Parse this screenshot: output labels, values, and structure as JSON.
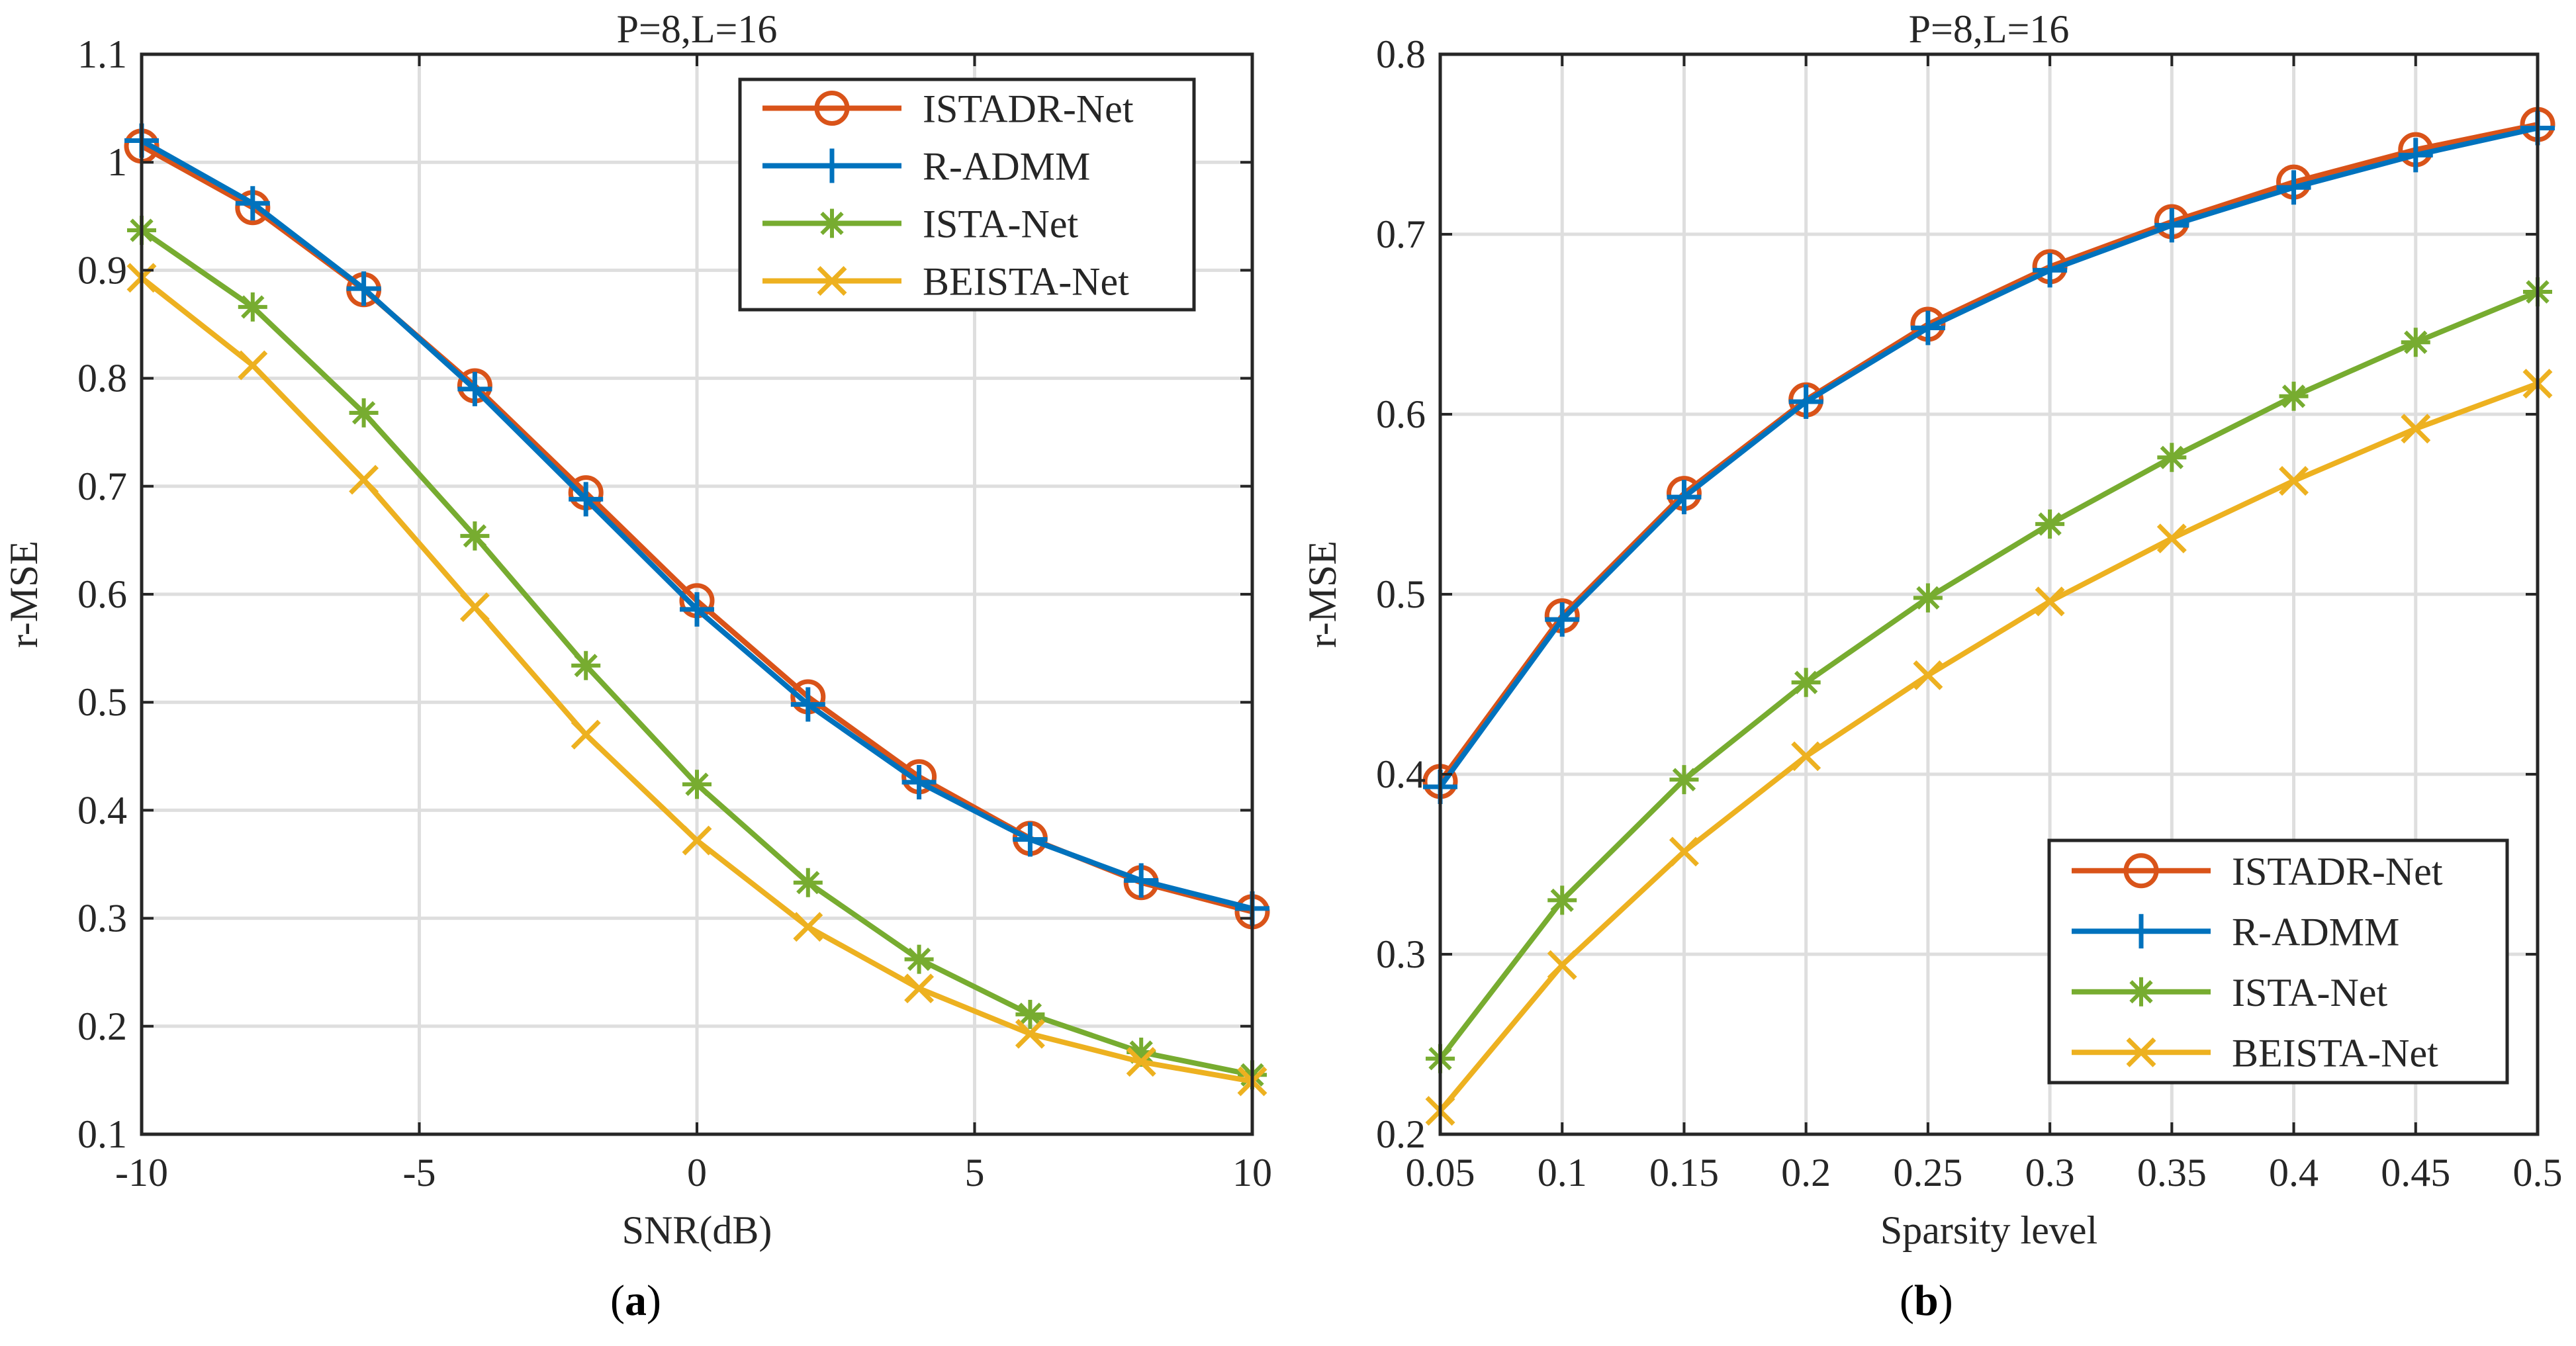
{
  "colors": {
    "ISTADR-Net": "#D95319",
    "R-ADMM": "#0072BD",
    "ISTA-Net": "#77AC30",
    "BEISTA-Net": "#EDB120"
  },
  "captions": [
    {
      "paren_open": "(",
      "letter": "a",
      "paren_close": ")"
    },
    {
      "paren_open": "(",
      "letter": "b",
      "paren_close": ")"
    }
  ],
  "chart_data": [
    {
      "type": "line",
      "title": "P=8,L=16",
      "xlabel": "SNR(dB)",
      "ylabel": "r-MSE",
      "xlim": [
        -10,
        10
      ],
      "ylim": [
        0.1,
        1.1
      ],
      "xticks": [
        -10,
        -5,
        0,
        5,
        10
      ],
      "xtick_labels": [
        "-10",
        "-5",
        "0",
        "5",
        "10"
      ],
      "yticks": [
        0.1,
        0.2,
        0.3,
        0.4,
        0.5,
        0.6,
        0.7,
        0.8,
        0.9,
        1.0,
        1.1
      ],
      "ytick_labels": [
        "0.1",
        "0.2",
        "0.3",
        "0.4",
        "0.5",
        "0.6",
        "0.7",
        "0.8",
        "0.9",
        "1",
        "1.1"
      ],
      "grid": true,
      "legend_position": "top-right",
      "x": [
        -10,
        -8,
        -6,
        -4,
        -2,
        0,
        2,
        4,
        6,
        8,
        10
      ],
      "series": [
        {
          "name": "ISTADR-Net",
          "marker": "circle",
          "values": [
            1.015,
            0.958,
            0.882,
            0.793,
            0.694,
            0.594,
            0.505,
            0.431,
            0.374,
            0.333,
            0.306
          ]
        },
        {
          "name": "R-ADMM",
          "marker": "plus",
          "values": [
            1.02,
            0.962,
            0.883,
            0.79,
            0.688,
            0.586,
            0.498,
            0.426,
            0.373,
            0.335,
            0.309
          ]
        },
        {
          "name": "ISTA-Net",
          "marker": "asterisk",
          "values": [
            0.937,
            0.866,
            0.768,
            0.654,
            0.534,
            0.424,
            0.333,
            0.262,
            0.211,
            0.176,
            0.155
          ]
        },
        {
          "name": "BEISTA-Net",
          "marker": "x",
          "values": [
            0.893,
            0.812,
            0.706,
            0.588,
            0.47,
            0.372,
            0.292,
            0.235,
            0.193,
            0.167,
            0.149
          ]
        }
      ]
    },
    {
      "type": "line",
      "title": "P=8,L=16",
      "xlabel": "Sparsity level",
      "ylabel": "r-MSE",
      "xlim": [
        0.05,
        0.5
      ],
      "ylim": [
        0.2,
        0.8
      ],
      "xticks": [
        0.05,
        0.1,
        0.15,
        0.2,
        0.25,
        0.3,
        0.35,
        0.4,
        0.45,
        0.5
      ],
      "xtick_labels": [
        "0.05",
        "0.1",
        "0.15",
        "0.2",
        "0.25",
        "0.3",
        "0.35",
        "0.4",
        "0.45",
        "0.5"
      ],
      "yticks": [
        0.2,
        0.3,
        0.4,
        0.5,
        0.6,
        0.7,
        0.8
      ],
      "ytick_labels": [
        "0.2",
        "0.3",
        "0.4",
        "0.5",
        "0.6",
        "0.7",
        "0.8"
      ],
      "grid": true,
      "legend_position": "bottom-right",
      "x": [
        0.05,
        0.1,
        0.15,
        0.2,
        0.25,
        0.3,
        0.35,
        0.4,
        0.45,
        0.5
      ],
      "series": [
        {
          "name": "ISTADR-Net",
          "marker": "circle",
          "values": [
            0.396,
            0.488,
            0.556,
            0.608,
            0.65,
            0.682,
            0.707,
            0.729,
            0.747,
            0.761
          ]
        },
        {
          "name": "R-ADMM",
          "marker": "plus",
          "values": [
            0.393,
            0.486,
            0.554,
            0.607,
            0.648,
            0.68,
            0.705,
            0.726,
            0.744,
            0.759
          ]
        },
        {
          "name": "ISTA-Net",
          "marker": "asterisk",
          "values": [
            0.242,
            0.33,
            0.397,
            0.451,
            0.498,
            0.539,
            0.576,
            0.61,
            0.64,
            0.668
          ]
        },
        {
          "name": "BEISTA-Net",
          "marker": "x",
          "values": [
            0.213,
            0.294,
            0.357,
            0.41,
            0.455,
            0.496,
            0.531,
            0.563,
            0.592,
            0.617
          ]
        }
      ]
    }
  ]
}
